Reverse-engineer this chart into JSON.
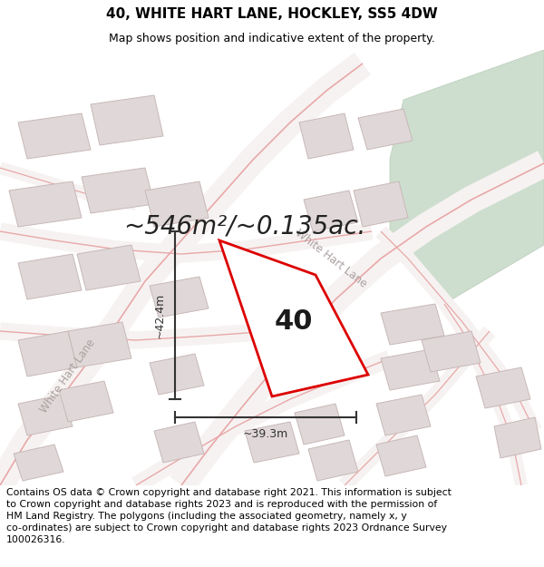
{
  "title": "40, WHITE HART LANE, HOCKLEY, SS5 4DW",
  "subtitle": "Map shows position and indicative extent of the property.",
  "area_text": "~546m²/~0.135ac.",
  "dim_vertical": "~42.4m",
  "dim_horizontal": "~39.3m",
  "plot_label": "40",
  "footer_text": "Contains OS data © Crown copyright and database right 2021. This information is subject\nto Crown copyright and database rights 2023 and is reproduced with the permission of\nHM Land Registry. The polygons (including the associated geometry, namely x, y\nco-ordinates) are subject to Crown copyright and database rights 2023 Ordnance Survey\n100026316.",
  "map_bg": "#f2eded",
  "road_color": "#e8a8a8",
  "road_fill": "#f7f2f2",
  "building_fc": "#e0d8d8",
  "building_ec": "#c8b8b8",
  "plot_fill": "#ffffff",
  "plot_edge": "#dd0000",
  "green_fill": "#cddece",
  "green_edge": "#b8ccb8",
  "dim_color": "#333333",
  "text_color": "#333333",
  "title_fontsize": 11,
  "subtitle_fontsize": 9,
  "area_fontsize": 20,
  "dim_fontsize": 9,
  "plot_label_fontsize": 22,
  "footer_fontsize": 7.8,
  "whl_fontsize": 8.5
}
